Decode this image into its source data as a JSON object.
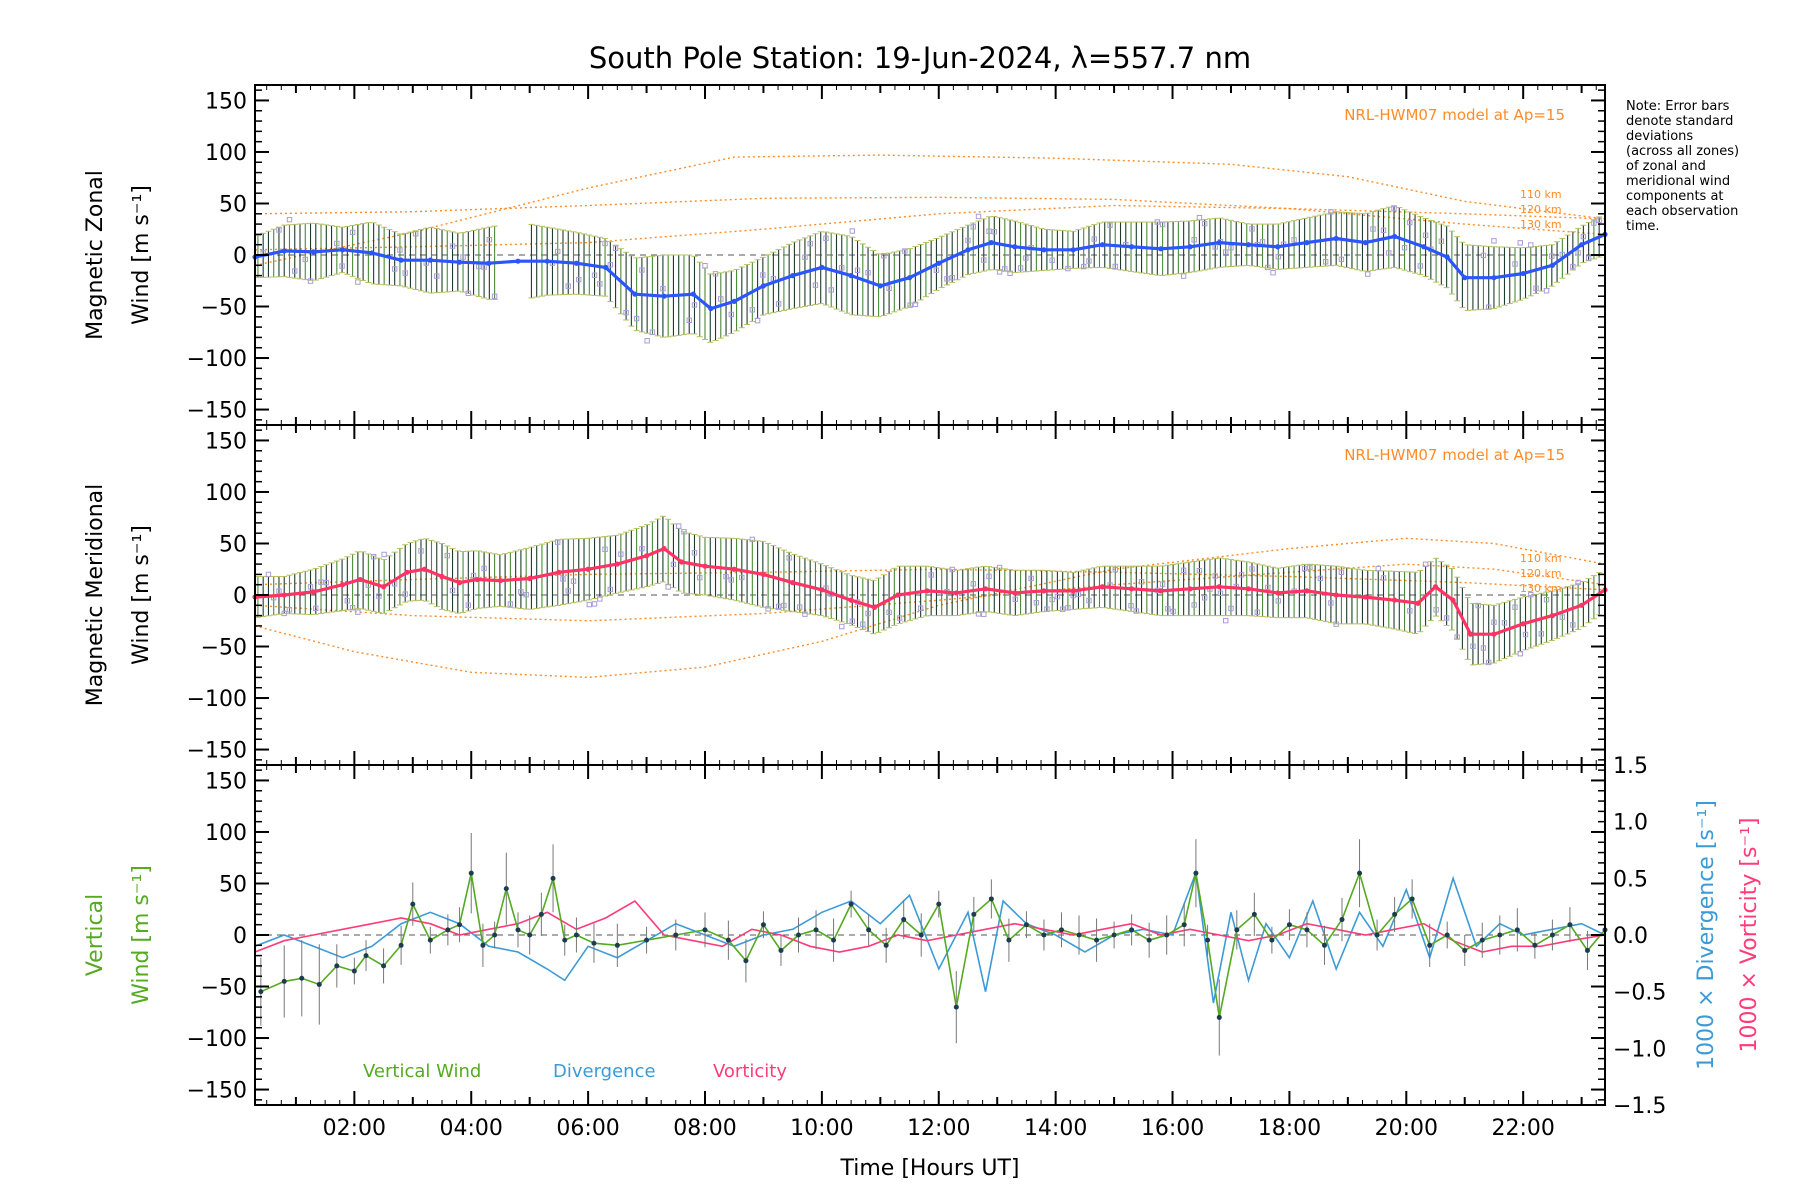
{
  "title": "South Pole Station: 19-Jun-2024, λ=557.7 nm",
  "note": [
    "Note: Error bars",
    "denote standard",
    "deviations",
    "(across all zones)",
    "of zonal and",
    "meridional wind",
    "components at",
    "each observation",
    "time."
  ],
  "colors": {
    "zonal_mean": "#2a55ff",
    "zonal_mean_light": "#55aae0",
    "meridional_mean": "#ff3366",
    "scatter": "#aa9cdc",
    "model": "#ff8c28",
    "vertical": "#55aa22",
    "divergence": "#3c9bd7",
    "vorticity": "#ff3c78",
    "errorbar": "#1e3c2d"
  },
  "chart_data": [
    {
      "type": "line",
      "panel": "zonal",
      "ylabel": [
        "Magnetic Zonal",
        "Wind [m s⁻¹]"
      ],
      "ylim": [
        -165,
        165
      ],
      "xlim": [
        0.3,
        23.4
      ],
      "yticks": [
        "150",
        "100",
        "50",
        "0",
        "−50",
        "−100",
        "−150"
      ],
      "model_label": "NRL-HWM07 model at Ap=15",
      "model_altitudes": [
        "110 km",
        "120 km",
        "130 km"
      ],
      "model_curves": [
        {
          "x": [
            0.3,
            3,
            6,
            9,
            12,
            15,
            18,
            21,
            23.4
          ],
          "y": [
            40,
            42,
            48,
            55,
            56,
            54,
            45,
            40,
            35
          ]
        },
        {
          "x": [
            0.3,
            3,
            6,
            8.5,
            11,
            14,
            17,
            19,
            21,
            23.4
          ],
          "y": [
            -10,
            22,
            65,
            95,
            97,
            94,
            88,
            76,
            52,
            35
          ]
        },
        {
          "x": [
            0.3,
            3,
            6,
            9,
            12,
            15,
            18,
            21,
            23.4
          ],
          "y": [
            5,
            8,
            12,
            25,
            40,
            48,
            45,
            30,
            20
          ]
        }
      ],
      "mean_wind": {
        "x": [
          0.3,
          0.8,
          1.3,
          1.8,
          2.3,
          2.8,
          3.3,
          3.8,
          4.3,
          4.8,
          5.3,
          5.8,
          6.3,
          6.8,
          7.3,
          7.8,
          8.1,
          8.5,
          9.0,
          9.5,
          10.0,
          10.5,
          11.0,
          11.5,
          12.0,
          12.5,
          12.9,
          13.3,
          13.8,
          14.3,
          14.8,
          15.3,
          15.8,
          16.3,
          16.8,
          17.3,
          17.8,
          18.3,
          18.8,
          19.3,
          19.8,
          20.3,
          20.7,
          21.0,
          21.5,
          22.0,
          22.5,
          23.0,
          23.4
        ],
        "y": [
          -2,
          4,
          3,
          5,
          2,
          -5,
          -5,
          -7,
          -8,
          -6,
          -6,
          -8,
          -12,
          -38,
          -40,
          -38,
          -52,
          -45,
          -30,
          -20,
          -12,
          -20,
          -30,
          -22,
          -8,
          5,
          12,
          8,
          5,
          5,
          10,
          8,
          6,
          8,
          12,
          10,
          8,
          12,
          16,
          12,
          18,
          8,
          -2,
          -22,
          -22,
          -18,
          -10,
          10,
          20
        ]
      },
      "errorbar_sd": [
        20,
        25,
        28,
        22,
        30,
        25,
        32,
        28,
        35,
        38,
        33,
        30,
        28,
        35,
        40,
        38,
        33,
        30,
        28,
        32,
        35,
        38,
        30,
        28,
        25,
        24,
        26,
        25,
        20,
        18,
        22,
        24,
        26,
        25,
        24,
        20,
        22,
        24,
        26,
        28,
        30,
        28,
        30,
        32,
        30,
        25,
        20,
        18,
        20
      ]
    },
    {
      "type": "line",
      "panel": "meridional",
      "ylabel": [
        "Magnetic Meridional",
        "Wind [m s⁻¹]"
      ],
      "ylim": [
        -165,
        165
      ],
      "xlim": [
        0.3,
        23.4
      ],
      "yticks": [
        "150",
        "100",
        "50",
        "0",
        "−50",
        "−100",
        "−150"
      ],
      "model_label": "NRL-HWM07 model at Ap=15",
      "model_altitudes": [
        "110 km",
        "120 km",
        "130 km"
      ],
      "model_curves": [
        {
          "x": [
            0.3,
            2,
            4,
            6,
            8,
            10,
            12,
            15,
            18,
            20,
            21.5,
            23.4
          ],
          "y": [
            -30,
            -55,
            -75,
            -80,
            -70,
            -45,
            -10,
            25,
            45,
            55,
            50,
            30
          ]
        },
        {
          "x": [
            0.3,
            3,
            6,
            9,
            12,
            15,
            18,
            20,
            21.5,
            23.4
          ],
          "y": [
            -10,
            -20,
            -25,
            -18,
            -5,
            10,
            22,
            30,
            25,
            10
          ]
        },
        {
          "x": [
            0.3,
            3,
            6,
            9,
            12,
            15,
            18,
            21,
            23.4
          ],
          "y": [
            10,
            15,
            20,
            22,
            25,
            22,
            18,
            12,
            5
          ]
        }
      ],
      "mean_wind": {
        "x": [
          0.3,
          0.8,
          1.3,
          1.8,
          2.1,
          2.5,
          2.9,
          3.2,
          3.5,
          3.8,
          4.1,
          4.5,
          5.0,
          5.5,
          6.0,
          6.5,
          7.0,
          7.3,
          7.6,
          8.0,
          8.5,
          9.0,
          9.5,
          10.0,
          10.5,
          10.9,
          11.3,
          11.8,
          12.3,
          12.8,
          13.3,
          13.8,
          14.3,
          14.8,
          15.3,
          15.8,
          16.3,
          16.8,
          17.3,
          17.8,
          18.3,
          18.8,
          19.3,
          19.8,
          20.2,
          20.5,
          20.8,
          21.1,
          21.5,
          22.0,
          22.5,
          23.0,
          23.4
        ],
        "y": [
          -2,
          0,
          3,
          10,
          15,
          8,
          22,
          25,
          18,
          12,
          15,
          14,
          16,
          22,
          25,
          30,
          38,
          45,
          32,
          28,
          25,
          20,
          12,
          5,
          -5,
          -12,
          0,
          4,
          2,
          6,
          2,
          4,
          4,
          8,
          6,
          4,
          6,
          8,
          6,
          2,
          4,
          0,
          -2,
          -5,
          -8,
          8,
          -5,
          -38,
          -38,
          -28,
          -20,
          -10,
          5
        ]
      },
      "errorbar_sd": [
        20,
        18,
        22,
        25,
        28,
        26,
        28,
        30,
        32,
        30,
        28,
        25,
        30,
        32,
        30,
        28,
        30,
        32,
        30,
        28,
        30,
        32,
        28,
        25,
        24,
        26,
        28,
        24,
        22,
        22,
        22,
        20,
        18,
        20,
        22,
        24,
        26,
        28,
        26,
        24,
        26,
        28,
        26,
        28,
        30,
        28,
        30,
        30,
        28,
        26,
        24,
        22,
        20
      ]
    },
    {
      "type": "line",
      "panel": "vertical",
      "ylabel_left": [
        "Vertical",
        "Wind [m s⁻¹]"
      ],
      "ylabel_right": [
        "1000 × Divergence [s⁻¹]",
        "1000 × Vorticity [s⁻¹]"
      ],
      "ylim": [
        -165,
        165
      ],
      "ylim_right": [
        -1.5,
        1.5
      ],
      "xlim": [
        0.3,
        23.4
      ],
      "yticks": [
        "150",
        "100",
        "50",
        "0",
        "−50",
        "−100",
        "−150"
      ],
      "yticks_right": [
        "1.5",
        "1.0",
        "0.5",
        "0.0",
        "−0.5",
        "−1.0",
        "−1.5"
      ],
      "xticks": [
        "02:00",
        "04:00",
        "06:00",
        "08:00",
        "10:00",
        "12:00",
        "14:00",
        "16:00",
        "18:00",
        "20:00",
        "22:00"
      ],
      "xtick_values": [
        2,
        4,
        6,
        8,
        10,
        12,
        14,
        16,
        18,
        20,
        22
      ],
      "xlabel": "Time [Hours UT]",
      "legend": [
        "Vertical Wind",
        "Divergence",
        "Vorticity"
      ],
      "series": [
        {
          "name": "Vertical Wind",
          "x": [
            0.4,
            0.8,
            1.1,
            1.4,
            1.7,
            2.0,
            2.2,
            2.5,
            2.8,
            3.0,
            3.3,
            3.6,
            3.8,
            4.0,
            4.2,
            4.4,
            4.6,
            4.8,
            5.0,
            5.2,
            5.4,
            5.6,
            5.8,
            6.1,
            6.5,
            7.0,
            7.5,
            8.0,
            8.4,
            8.7,
            9.0,
            9.3,
            9.6,
            9.9,
            10.2,
            10.5,
            10.8,
            11.1,
            11.4,
            11.7,
            12.0,
            12.3,
            12.6,
            12.9,
            13.2,
            13.5,
            13.8,
            14.1,
            14.4,
            14.7,
            15.0,
            15.3,
            15.6,
            15.9,
            16.2,
            16.4,
            16.6,
            16.8,
            17.1,
            17.4,
            17.7,
            18.0,
            18.3,
            18.6,
            18.9,
            19.2,
            19.5,
            19.8,
            20.1,
            20.4,
            20.7,
            21.0,
            21.3,
            21.6,
            21.9,
            22.2,
            22.5,
            22.8,
            23.1,
            23.4
          ],
          "y": [
            -55,
            -45,
            -42,
            -48,
            -30,
            -35,
            -20,
            -30,
            -10,
            30,
            -5,
            5,
            10,
            60,
            -10,
            0,
            45,
            5,
            0,
            20,
            55,
            -5,
            0,
            -8,
            -10,
            -5,
            0,
            5,
            -5,
            -25,
            10,
            -15,
            0,
            5,
            -5,
            30,
            5,
            -10,
            15,
            0,
            30,
            -70,
            20,
            35,
            -5,
            10,
            0,
            5,
            0,
            -5,
            0,
            5,
            -5,
            0,
            10,
            60,
            -5,
            -80,
            5,
            20,
            -5,
            10,
            5,
            -10,
            15,
            60,
            0,
            20,
            35,
            -10,
            0,
            -15,
            -5,
            0,
            5,
            -10,
            0,
            10,
            -15,
            5
          ]
        },
        {
          "name": "Divergence",
          "x": [
            0.3,
            0.8,
            1.3,
            1.8,
            2.3,
            2.8,
            3.3,
            3.8,
            4.3,
            4.8,
            5.3,
            5.6,
            6.0,
            6.5,
            7.0,
            7.5,
            8.0,
            8.5,
            9.0,
            9.5,
            10.0,
            10.5,
            11.0,
            11.5,
            12.0,
            12.5,
            12.8,
            13.1,
            13.5,
            14.0,
            14.5,
            15.0,
            15.5,
            16.0,
            16.4,
            16.7,
            17.0,
            17.3,
            17.6,
            18.0,
            18.4,
            18.8,
            19.2,
            19.6,
            20.0,
            20.4,
            20.8,
            21.2,
            21.6,
            22.0,
            22.5,
            23.0,
            23.4
          ],
          "y": [
            -0.1,
            0.0,
            -0.1,
            -0.2,
            -0.1,
            0.1,
            0.2,
            0.1,
            -0.1,
            -0.15,
            -0.3,
            -0.4,
            -0.1,
            -0.2,
            -0.05,
            0.1,
            0.0,
            -0.1,
            0.0,
            0.05,
            0.2,
            0.3,
            0.1,
            0.35,
            -0.3,
            0.2,
            -0.5,
            0.3,
            0.1,
            0.0,
            -0.15,
            0.0,
            0.05,
            0.0,
            0.55,
            -0.6,
            0.2,
            -0.4,
            0.1,
            -0.2,
            0.3,
            -0.3,
            0.2,
            -0.1,
            0.4,
            -0.2,
            0.5,
            -0.1,
            0.1,
            0.0,
            0.05,
            0.1,
            0.0
          ]
        },
        {
          "name": "Vorticity",
          "x": [
            0.3,
            0.8,
            1.3,
            1.8,
            2.3,
            2.8,
            3.3,
            3.8,
            4.3,
            4.8,
            5.3,
            5.8,
            6.3,
            6.8,
            7.3,
            7.8,
            8.3,
            8.8,
            9.3,
            9.8,
            10.3,
            10.8,
            11.3,
            11.8,
            12.3,
            12.8,
            13.3,
            13.8,
            14.3,
            14.8,
            15.3,
            15.8,
            16.3,
            16.8,
            17.3,
            17.8,
            18.3,
            18.8,
            19.3,
            19.8,
            20.3,
            20.8,
            21.3,
            21.8,
            22.3,
            22.8,
            23.4
          ],
          "y": [
            -0.15,
            -0.05,
            0.0,
            0.05,
            0.1,
            0.15,
            0.1,
            0.0,
            0.05,
            0.1,
            0.2,
            0.05,
            0.15,
            0.3,
            0.0,
            -0.05,
            -0.1,
            0.05,
            0.0,
            -0.1,
            -0.15,
            -0.1,
            0.0,
            -0.05,
            0.0,
            0.05,
            0.1,
            0.05,
            0.0,
            0.05,
            0.1,
            0.0,
            0.05,
            0.0,
            -0.05,
            0.0,
            0.1,
            0.05,
            0.0,
            0.05,
            0.1,
            -0.05,
            -0.15,
            -0.1,
            -0.1,
            -0.05,
            0.0
          ]
        }
      ]
    }
  ]
}
